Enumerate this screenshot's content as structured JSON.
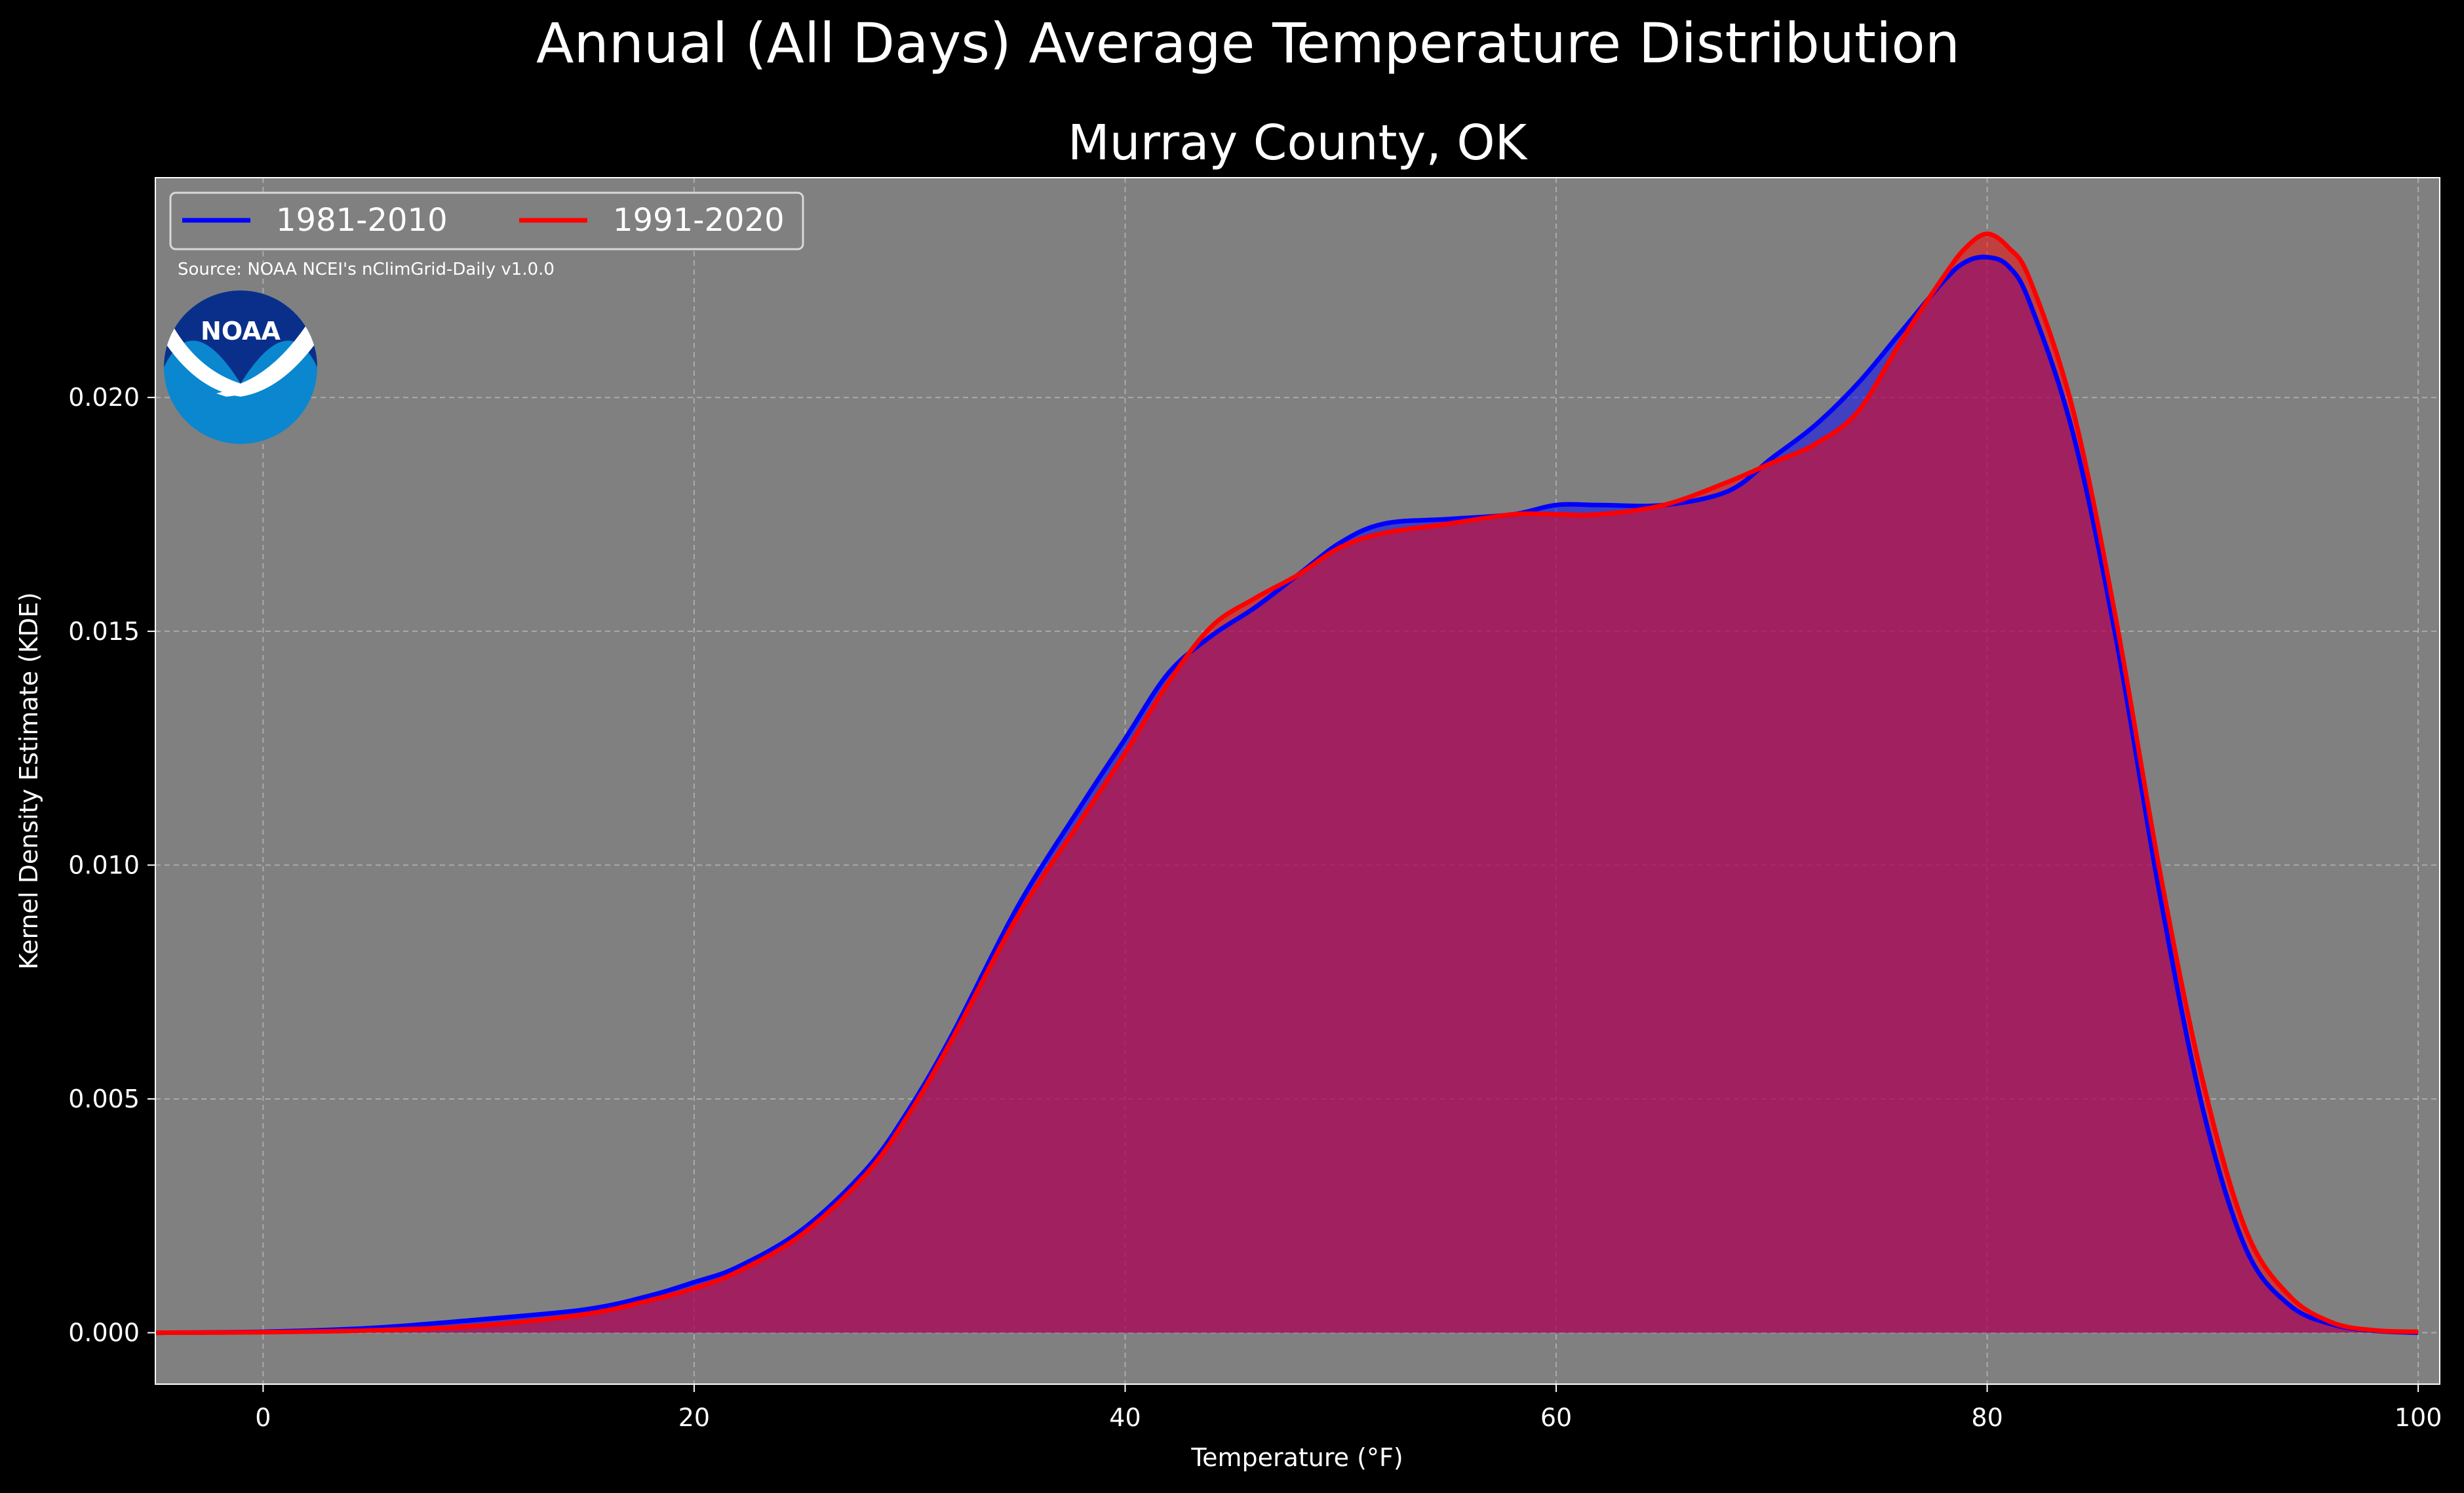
{
  "chart_data": {
    "type": "area",
    "title": "Annual (All Days) Average Temperature Distribution",
    "subtitle": "Murray County, OK",
    "xlabel": "Temperature ($^\\circ$F)",
    "xlabel_display": "Temperature (°F)",
    "ylabel": "Kernel Density Estimate (KDE)",
    "xlim": [
      -5,
      101
    ],
    "ylim": [
      -0.0011,
      0.0247
    ],
    "xticks": [
      0,
      20,
      40,
      60,
      80,
      100
    ],
    "xtick_labels": [
      "0",
      "20",
      "40",
      "60",
      "80",
      "100"
    ],
    "yticks": [
      0.0,
      0.005,
      0.01,
      0.015,
      0.02
    ],
    "ytick_labels": [
      "0.000",
      "0.005",
      "0.010",
      "0.015",
      "0.020"
    ],
    "grid": true,
    "legend_placement": "top-left",
    "source_note": "Source: NOAA NCEI's nClimGrid-Daily v1.0.0",
    "logo_text": "NOAA",
    "colors": {
      "figure_bg": "#000000",
      "axes_bg": "#808080",
      "series_1981": "#0000ff",
      "series_1991": "#ff0000",
      "fill_overlap": "#9c1f5c",
      "logo_outer": "#0a87cf",
      "logo_inner": "#0a2f8a"
    },
    "series": [
      {
        "name": "1981-2010",
        "color": "#0000ff",
        "x": [
          -5,
          0,
          5,
          10,
          15,
          18,
          20,
          22,
          25,
          28,
          30,
          32,
          35,
          38,
          40,
          42,
          44,
          46,
          48,
          50,
          52,
          55,
          58,
          60,
          62,
          65,
          68,
          70,
          72,
          74,
          76,
          78,
          79,
          80,
          81,
          82,
          84,
          86,
          88,
          90,
          92,
          94,
          96,
          98,
          100
        ],
        "y": [
          0.0,
          2e-05,
          0.0001,
          0.00028,
          0.0005,
          0.0008,
          0.00108,
          0.0014,
          0.0022,
          0.0035,
          0.0048,
          0.0064,
          0.0091,
          0.0113,
          0.0127,
          0.0141,
          0.0149,
          0.0155,
          0.0162,
          0.0169,
          0.0173,
          0.0174,
          0.0175,
          0.0177,
          0.0177,
          0.0177,
          0.018,
          0.0187,
          0.0194,
          0.0203,
          0.0214,
          0.0225,
          0.0229,
          0.023,
          0.0228,
          0.022,
          0.0192,
          0.0148,
          0.0094,
          0.0048,
          0.0018,
          0.0006,
          0.00018,
          4e-05,
          0.0
        ]
      },
      {
        "name": "1991-2020",
        "color": "#ff0000",
        "x": [
          -5,
          0,
          5,
          10,
          15,
          18,
          20,
          22,
          25,
          28,
          30,
          32,
          35,
          38,
          40,
          42,
          44,
          46,
          48,
          50,
          52,
          55,
          58,
          60,
          62,
          65,
          68,
          70,
          72,
          74,
          76,
          78,
          79,
          80,
          81,
          82,
          84,
          86,
          88,
          90,
          92,
          94,
          96,
          98,
          100
        ],
        "y": [
          0.0,
          1e-05,
          5e-05,
          0.00015,
          0.0004,
          0.0007,
          0.00095,
          0.0013,
          0.0021,
          0.0034,
          0.0047,
          0.0063,
          0.0089,
          0.011,
          0.0124,
          0.0139,
          0.0151,
          0.0157,
          0.0162,
          0.0168,
          0.0171,
          0.0173,
          0.0175,
          0.0175,
          0.0175,
          0.0177,
          0.0182,
          0.0186,
          0.019,
          0.0197,
          0.0212,
          0.0226,
          0.0232,
          0.0235,
          0.0232,
          0.0225,
          0.0197,
          0.0152,
          0.0099,
          0.0054,
          0.0022,
          0.0008,
          0.00022,
          5e-05,
          2e-05
        ]
      }
    ]
  }
}
